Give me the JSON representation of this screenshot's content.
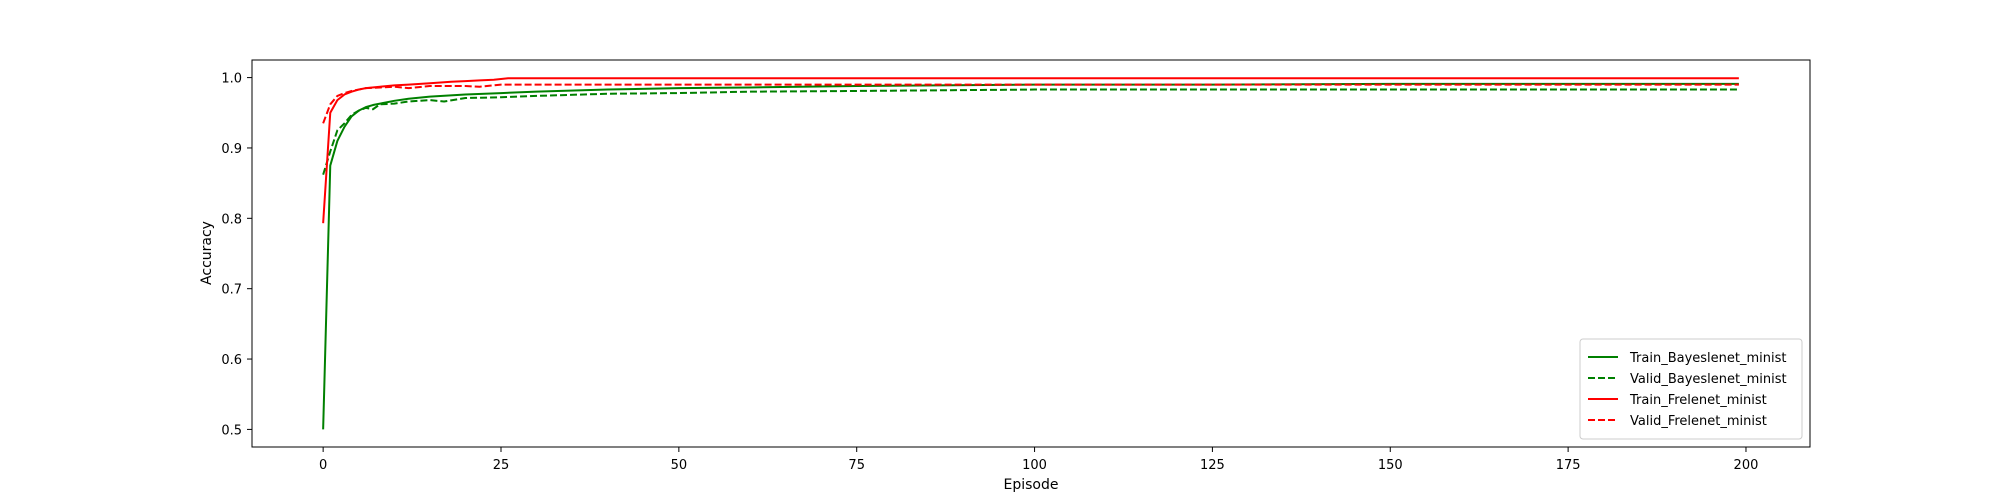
{
  "chart_data": {
    "type": "line",
    "xlabel": "Episode",
    "ylabel": "Accuracy",
    "xlim": [
      -10,
      209
    ],
    "ylim": [
      0.475,
      1.025
    ],
    "xticks": [
      0,
      25,
      50,
      75,
      100,
      125,
      150,
      175,
      200
    ],
    "yticks": [
      0.5,
      0.6,
      0.7,
      0.8,
      0.9,
      1.0
    ],
    "ytick_labels": [
      "0.5",
      "0.6",
      "0.7",
      "0.8",
      "0.9",
      "1.0"
    ],
    "grid": false,
    "legend_position": "lower-right",
    "series": [
      {
        "name": "Train_Bayeslenet_minist",
        "color": "#008000",
        "style": "solid",
        "x": [
          0,
          1,
          2,
          3,
          4,
          5,
          6,
          7,
          8,
          10,
          12,
          15,
          20,
          25,
          30,
          40,
          50,
          60,
          75,
          100,
          125,
          150,
          175,
          199
        ],
        "y": [
          0.5,
          0.875,
          0.91,
          0.93,
          0.945,
          0.953,
          0.958,
          0.961,
          0.963,
          0.967,
          0.97,
          0.973,
          0.976,
          0.978,
          0.98,
          0.983,
          0.985,
          0.986,
          0.988,
          0.99,
          0.99,
          0.991,
          0.991,
          0.991
        ]
      },
      {
        "name": "Valid_Bayeslenet_minist",
        "color": "#008000",
        "style": "dashed",
        "x": [
          0,
          1,
          2,
          3,
          4,
          5,
          6,
          7,
          8,
          10,
          12,
          15,
          17,
          20,
          25,
          30,
          40,
          50,
          60,
          75,
          100,
          125,
          150,
          175,
          199
        ],
        "y": [
          0.862,
          0.895,
          0.925,
          0.935,
          0.947,
          0.953,
          0.957,
          0.955,
          0.962,
          0.963,
          0.966,
          0.968,
          0.966,
          0.971,
          0.972,
          0.974,
          0.977,
          0.978,
          0.98,
          0.981,
          0.983,
          0.983,
          0.983,
          0.983,
          0.983
        ]
      },
      {
        "name": "Train_Frelenet_minist",
        "color": "#ff0000",
        "style": "solid",
        "x": [
          0,
          1,
          2,
          3,
          4,
          5,
          6,
          8,
          10,
          12,
          15,
          18,
          20,
          22,
          24,
          26,
          30,
          50,
          100,
          150,
          199
        ],
        "y": [
          0.793,
          0.95,
          0.968,
          0.976,
          0.98,
          0.983,
          0.985,
          0.987,
          0.989,
          0.99,
          0.992,
          0.994,
          0.995,
          0.996,
          0.997,
          0.999,
          0.999,
          0.999,
          0.999,
          0.999,
          0.999
        ]
      },
      {
        "name": "Valid_Frelenet_minist",
        "color": "#ff0000",
        "style": "dashed",
        "x": [
          0,
          1,
          2,
          3,
          4,
          5,
          6,
          8,
          10,
          12,
          15,
          18,
          20,
          22,
          25,
          30,
          50,
          100,
          150,
          199
        ],
        "y": [
          0.935,
          0.962,
          0.974,
          0.978,
          0.981,
          0.983,
          0.985,
          0.986,
          0.987,
          0.985,
          0.988,
          0.988,
          0.988,
          0.987,
          0.99,
          0.99,
          0.99,
          0.99,
          0.99,
          0.99
        ]
      }
    ]
  }
}
